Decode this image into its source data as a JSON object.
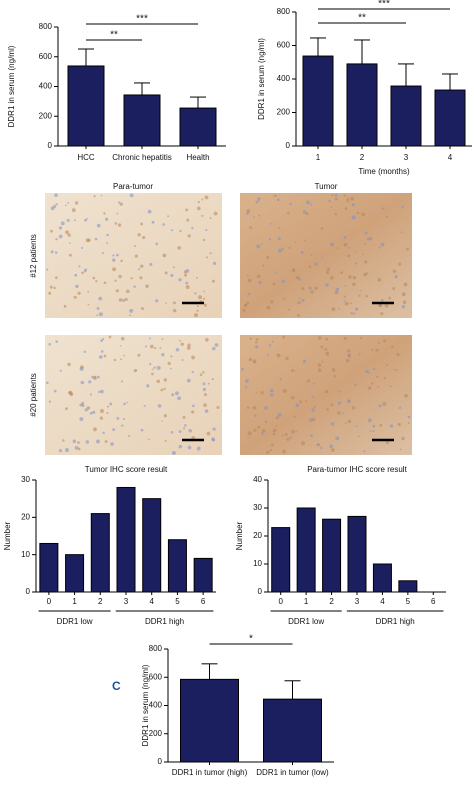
{
  "chart_data": [
    {
      "type": "bar",
      "y_label": "DDR1 in serum (ng/ml)",
      "categories": [
        "HCC",
        "Chronic hepatitis",
        "Health"
      ],
      "values": [
        538,
        343,
        255
      ],
      "errors": [
        114,
        81,
        74
      ],
      "color": "#1b1f5f",
      "ylim": [
        0,
        800
      ],
      "yticks": [
        0,
        200,
        400,
        600,
        800
      ],
      "annotations": [
        "***",
        "**"
      ]
    },
    {
      "type": "bar",
      "y_label": "DDR1 in serum (ng/ml)",
      "x_label": "Time (months)",
      "categories": [
        "1",
        "2",
        "3",
        "4"
      ],
      "values": [
        537,
        490,
        358,
        334
      ],
      "errors": [
        108,
        143,
        132,
        96
      ],
      "color": "#1b1f5f",
      "ylim": [
        0,
        800
      ],
      "yticks": [
        0,
        200,
        400,
        600,
        800
      ],
      "annotations": [
        "***",
        "**"
      ]
    },
    {
      "type": "bar",
      "title": "Tumor IHC score result",
      "y_label": "Number",
      "categories": [
        "0",
        "1",
        "2",
        "3",
        "4",
        "5",
        "6"
      ],
      "values": [
        13,
        10,
        21,
        28,
        25,
        14,
        9
      ],
      "color": "#1b1f5f",
      "ylim": [
        0,
        30
      ],
      "yticks": [
        0,
        10,
        20,
        30
      ],
      "group_labels": [
        "DDR1 low",
        "DDR1 high"
      ]
    },
    {
      "type": "bar",
      "title": "Para-tumor IHC score result",
      "y_label": "Number",
      "categories": [
        "0",
        "1",
        "2",
        "3",
        "4",
        "5",
        "6"
      ],
      "values": [
        23,
        30,
        26,
        27,
        10,
        4,
        0
      ],
      "color": "#1b1f5f",
      "ylim": [
        0,
        40
      ],
      "yticks": [
        0,
        10,
        20,
        30,
        40
      ],
      "group_labels": [
        "DDR1 low",
        "DDR1 high"
      ]
    },
    {
      "type": "bar",
      "y_label": "DDR1 in serum (ng/ml)",
      "categories": [
        "DDR1 in tumor (high)",
        "DDR1 in tumor (low)"
      ],
      "values": [
        585,
        445
      ],
      "errors": [
        110,
        130
      ],
      "color": "#1b1f5f",
      "ylim": [
        0,
        800
      ],
      "yticks": [
        0,
        200,
        400,
        600,
        800
      ],
      "annotations": [
        "*"
      ]
    }
  ],
  "panels": {
    "columns": [
      "Para-tumor",
      "Tumor"
    ],
    "rows": [
      "#12 patients",
      "#20 patients"
    ]
  },
  "panel_label": "C"
}
